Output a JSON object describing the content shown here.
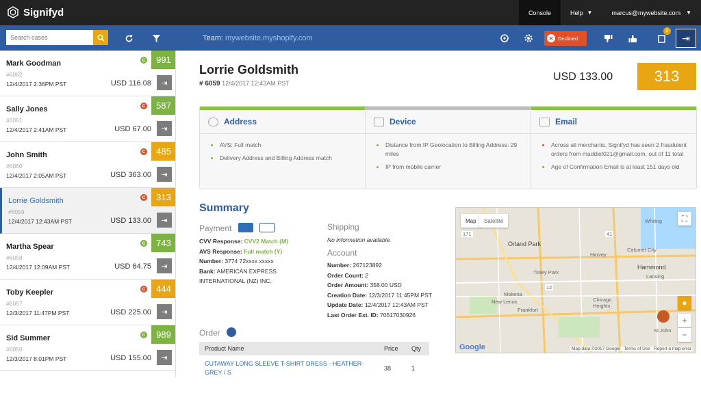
{
  "app": {
    "logo_text": "Signifyd"
  },
  "topnav": {
    "console": "Console",
    "help": "Help",
    "user": "marcus@mywebsite.com"
  },
  "search": {
    "placeholder": "Search cases"
  },
  "team": {
    "label": "Team:",
    "value": "mywebsite.myshopify.com"
  },
  "status": {
    "declined": "Declined",
    "notification_count": "2"
  },
  "cases": [
    {
      "name": "Mark Goodman",
      "id": "#6062",
      "date": "12/4/2017 2:36PM PST",
      "amount": "USD 116.08",
      "score": "991",
      "score_color": "green",
      "dot": "green"
    },
    {
      "name": "Sally Jones",
      "id": "#6061",
      "date": "12/4/2017 2:41AM PST",
      "amount": "USD 67.00",
      "score": "587",
      "score_color": "green",
      "dot": "red"
    },
    {
      "name": "John Smith",
      "id": "#6060",
      "date": "12/4/2017 2:05AM PST",
      "amount": "USD 363.00",
      "score": "485",
      "score_color": "orange",
      "dot": "red"
    },
    {
      "name": "Lorrie Goldsmith",
      "id": "#6059",
      "date": "12/4/2017 12:43AM PST",
      "amount": "USD 133.00",
      "score": "313",
      "score_color": "orange",
      "dot": "red"
    },
    {
      "name": "Martha Spear",
      "id": "#6058",
      "date": "12/4/2017 12:09AM PST",
      "amount": "USD 64.75",
      "score": "743",
      "score_color": "green",
      "dot": "green"
    },
    {
      "name": "Toby Keepler",
      "id": "#6057",
      "date": "12/3/2017 11:47PM PST",
      "amount": "USD 225.00",
      "score": "444",
      "score_color": "orange",
      "dot": "red"
    },
    {
      "name": "Sid Summer",
      "id": "#6056",
      "date": "12/3/2017 8:01PM PST",
      "amount": "USD 155.00",
      "score": "989",
      "score_color": "green",
      "dot": "green"
    }
  ],
  "detail": {
    "name": "Lorrie Goldsmith",
    "case_id": "# 6059",
    "datetime": "12/4/2017 12:43AM PST",
    "amount": "USD 133.00",
    "score": "313"
  },
  "panels": {
    "address": {
      "title": "Address",
      "items": [
        "AVS: Full match",
        "Delivery Address and Billing Address match"
      ]
    },
    "device": {
      "title": "Device",
      "items": [
        "Distance from IP Geolocation to Billing Address: 29 miles",
        "IP from mobile carrier"
      ]
    },
    "email": {
      "title": "Email",
      "items": [
        "Across all merchants, Signifyd has seen 2 fraudulent orders from maddiet021@gmail.com, out of 11 total",
        "Age of Confirmation Email is at least 151 days old"
      ]
    }
  },
  "summary": {
    "title": "Summary",
    "payment": {
      "label": "Payment",
      "cvv_label": "CVV Response:",
      "cvv_value": "CVV2 Match (M)",
      "avs_label": "AVS Response:",
      "avs_value": "Full match (Y)",
      "number_label": "Number:",
      "number_value": "3774 72xxxx xxxxx",
      "bank_label": "Bank:",
      "bank_value": "AMERICAN EXPRESS INTERNATIONAL (NZ) INC."
    },
    "shipping": {
      "label": "Shipping",
      "value": "No information available."
    },
    "account": {
      "label": "Account",
      "number_label": "Number:",
      "number_value": "267123892",
      "order_count_label": "Order Count:",
      "order_count_value": "2",
      "order_amount_label": "Order Amount:",
      "order_amount_value": "358.00 USD",
      "creation_label": "Creation Date:",
      "creation_value": "12/3/2017 11:45PM PST",
      "update_label": "Update Date:",
      "update_value": "12/4/2017 12:43AM PST",
      "last_order_label": "Last Order Ext. ID:",
      "last_order_value": "70517030926"
    }
  },
  "order": {
    "label": "Order",
    "headers": {
      "product": "Product Name",
      "price": "Price",
      "qty": "Qty"
    },
    "rows": [
      {
        "product": "CUTAWAY LONG SLEEVE T-SHIRT DRESS - HEATHER-GREY / S",
        "price": "38",
        "qty": "1"
      }
    ]
  },
  "map": {
    "tab_map": "Map",
    "tab_satellite": "Satellite",
    "labels": [
      "Orland Park",
      "Harvey",
      "Hammond",
      "Tinley Park",
      "Whiting",
      "Calumet City",
      "Lansing",
      "Mokena",
      "New Lenox",
      "Frankfort",
      "Chicago Heights",
      "St John"
    ],
    "road_numbers": [
      "171",
      "41",
      "12"
    ],
    "attribution": "Map data ©2017 Google",
    "terms": "Terms of Use",
    "report": "Report a map error",
    "google": "Google"
  },
  "colors": {
    "brand_blue": "#2f5da0",
    "score_green": "#7cb342",
    "score_orange": "#e8a712",
    "declined": "#e0502a"
  }
}
